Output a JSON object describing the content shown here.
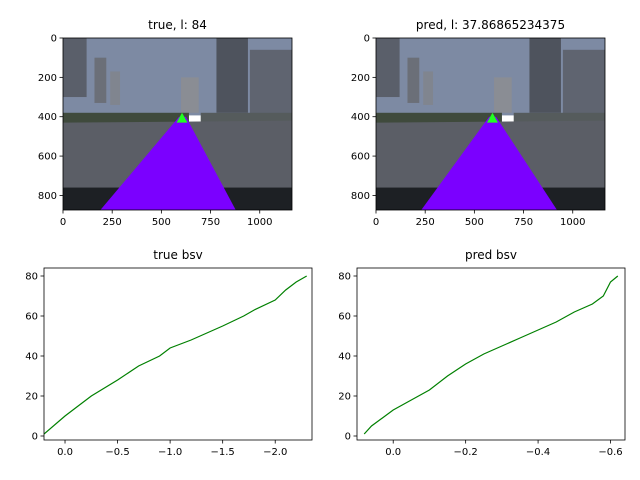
{
  "colors": {
    "line": "#008000",
    "lane_fill": "#7b00ff",
    "lane_tip": "#22ff22",
    "sky": "#7d8aa3",
    "axes": "#000000"
  },
  "chart_data": [
    {
      "type": "image",
      "title": "true, l: 84",
      "xlim": [
        0,
        1164
      ],
      "ylim": [
        874,
        0
      ],
      "xticks": [
        0,
        250,
        500,
        750,
        1000
      ],
      "xtick_labels": [
        "0",
        "250",
        "500",
        "750",
        "1000"
      ],
      "yticks": [
        0,
        200,
        400,
        600,
        800
      ],
      "ytick_labels": [
        "0",
        "200",
        "400",
        "600",
        "800"
      ],
      "lane_polygon": [
        [
          190,
          874
        ],
        [
          878,
          874
        ],
        [
          625,
          400
        ],
        [
          590,
          400
        ]
      ],
      "lane_tip": [
        605,
        390
      ]
    },
    {
      "type": "image",
      "title": "pred, l: 37.86865234375",
      "xlim": [
        0,
        1164
      ],
      "ylim": [
        874,
        0
      ],
      "xticks": [
        0,
        250,
        500,
        750,
        1000
      ],
      "xtick_labels": [
        "0",
        "250",
        "500",
        "750",
        "1000"
      ],
      "yticks": [
        0,
        200,
        400,
        600,
        800
      ],
      "ytick_labels": [
        "0",
        "200",
        "400",
        "600",
        "800"
      ],
      "lane_polygon": [
        [
          230,
          874
        ],
        [
          920,
          874
        ],
        [
          610,
          400
        ],
        [
          575,
          400
        ]
      ],
      "lane_tip": [
        592,
        390
      ]
    },
    {
      "type": "line",
      "title": "true bsv",
      "xlim": [
        0.2,
        -2.35
      ],
      "ylim": [
        -2,
        84
      ],
      "xticks": [
        0.0,
        -0.5,
        -1.0,
        -1.5,
        -2.0
      ],
      "xtick_labels": [
        "0.0",
        "−0.5",
        "−1.0",
        "−1.5",
        "−2.0"
      ],
      "yticks": [
        0,
        20,
        40,
        60,
        80
      ],
      "ytick_labels": [
        "0",
        "20",
        "40",
        "60",
        "80"
      ],
      "grid": false,
      "series": [
        {
          "x": [
            0.2,
            0.0,
            -0.1,
            -0.25,
            -0.5,
            -0.7,
            -0.9,
            -1.0,
            -1.2,
            -1.5,
            -1.7,
            -1.8,
            -2.0,
            -2.1,
            -2.2,
            -2.3
          ],
          "y": [
            1,
            10,
            14,
            20,
            28,
            35,
            40,
            44,
            48,
            55,
            60,
            63,
            68,
            73,
            77,
            80
          ]
        }
      ]
    },
    {
      "type": "line",
      "title": "pred bsv",
      "xlim": [
        0.1,
        -0.64
      ],
      "ylim": [
        -2,
        84
      ],
      "xticks": [
        0.0,
        -0.2,
        -0.4,
        -0.6
      ],
      "xtick_labels": [
        "0.0",
        "−0.2",
        "−0.4",
        "−0.6"
      ],
      "yticks": [
        0,
        20,
        40,
        60,
        80
      ],
      "ytick_labels": [
        "0",
        "20",
        "40",
        "60",
        "80"
      ],
      "grid": false,
      "series": [
        {
          "x": [
            0.08,
            0.06,
            0.03,
            0.0,
            -0.05,
            -0.1,
            -0.15,
            -0.2,
            -0.25,
            -0.3,
            -0.35,
            -0.4,
            -0.45,
            -0.5,
            -0.55,
            -0.58,
            -0.6,
            -0.62
          ],
          "y": [
            1,
            5,
            9,
            13,
            18,
            23,
            30,
            36,
            41,
            45,
            49,
            53,
            57,
            62,
            66,
            70,
            77,
            80
          ]
        }
      ]
    }
  ]
}
